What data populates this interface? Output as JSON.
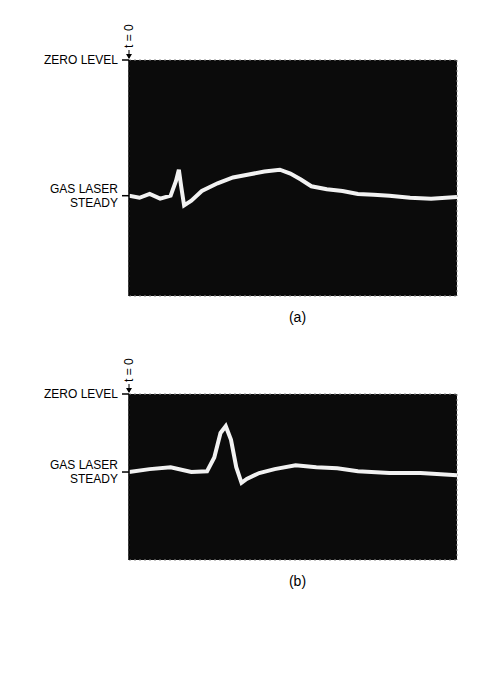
{
  "chart_data": [
    {
      "type": "line",
      "title": "(a)",
      "color": "#f2f2f2",
      "x": [
        0,
        0.32,
        0.63,
        0.95,
        1.27,
        1.43,
        1.52,
        1.59,
        1.68,
        1.9,
        2.22,
        2.7,
        3.17,
        3.65,
        4.13,
        4.6,
        4.92,
        5.24,
        5.56,
        6.03,
        6.51,
        6.98,
        7.46,
        7.94,
        8.57,
        9.21,
        10
      ],
      "values": [
        -4.6,
        -4.67,
        -4.54,
        -4.7,
        -4.6,
        -4.11,
        -3.72,
        -4.28,
        -4.93,
        -4.77,
        -4.44,
        -4.18,
        -3.98,
        -3.88,
        -3.78,
        -3.72,
        -3.85,
        -4.05,
        -4.28,
        -4.38,
        -4.44,
        -4.54,
        -4.57,
        -4.6,
        -4.67,
        -4.7,
        -4.64
      ],
      "xlim": [
        0,
        10
      ],
      "ylim": [
        -8,
        0
      ],
      "xticks": [
        0,
        1,
        2,
        3,
        4,
        5,
        6,
        7,
        8,
        9,
        10
      ],
      "yticks": [
        -8,
        -7,
        -6,
        -5,
        -4,
        -3,
        -2,
        -1,
        0
      ],
      "grid": true,
      "tick_labels": false,
      "annotations": [
        {
          "text": "t = 0",
          "x": 0
        },
        {
          "text": "ZERO LEVEL",
          "y": 0
        },
        {
          "text": "GAS LASER STEADY",
          "y": -4.6
        }
      ]
    },
    {
      "type": "line",
      "title": "(b)",
      "color": "#f2f2f2",
      "x": [
        0,
        0.63,
        1.27,
        1.9,
        2.38,
        2.6,
        2.79,
        2.95,
        3.11,
        3.27,
        3.43,
        3.59,
        3.97,
        4.44,
        5.08,
        5.71,
        6.35,
        6.98,
        7.94,
        8.89,
        10
      ],
      "values": [
        -3.76,
        -3.62,
        -3.53,
        -3.76,
        -3.72,
        -3.06,
        -1.88,
        -1.55,
        -2.21,
        -3.53,
        -4.28,
        -4.09,
        -3.81,
        -3.62,
        -3.44,
        -3.53,
        -3.58,
        -3.72,
        -3.81,
        -3.81,
        -3.91
      ],
      "xlim": [
        0,
        10
      ],
      "ylim": [
        -8,
        0
      ],
      "xticks": [
        0,
        1,
        2,
        3,
        4,
        5,
        6,
        7,
        8,
        9,
        10
      ],
      "yticks": [
        -8,
        -7,
        -6,
        -5,
        -4,
        -3,
        -2,
        -1,
        0
      ],
      "grid": true,
      "tick_labels": false,
      "annotations": [
        {
          "text": "t = 0",
          "x": 0
        },
        {
          "text": "ZERO LEVEL",
          "y": 0
        },
        {
          "text": "GAS LASER STEADY",
          "y": -3.76
        }
      ]
    }
  ]
}
